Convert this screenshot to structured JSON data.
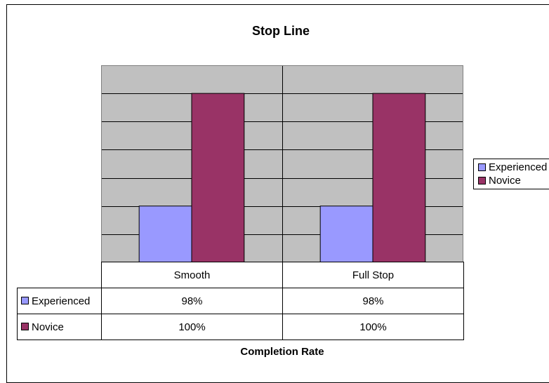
{
  "chart_data": {
    "type": "bar",
    "title": "Stop Line",
    "xlabel": "Completion Rate",
    "ylabel": "",
    "categories": [
      "Smooth",
      "Full Stop"
    ],
    "series": [
      {
        "name": "Experienced",
        "values": [
          98,
          98
        ],
        "labels": [
          "98%",
          "98%"
        ],
        "color": "#9999ff"
      },
      {
        "name": "Novice",
        "values": [
          100,
          100
        ],
        "labels": [
          "100%",
          "100%"
        ],
        "color": "#993366"
      }
    ],
    "ylim": [
      97,
      100.5
    ],
    "gridline_step": 0.5,
    "grid": true,
    "plot_background": "#c0c0c0",
    "legend_position": "right",
    "data_table": true
  }
}
